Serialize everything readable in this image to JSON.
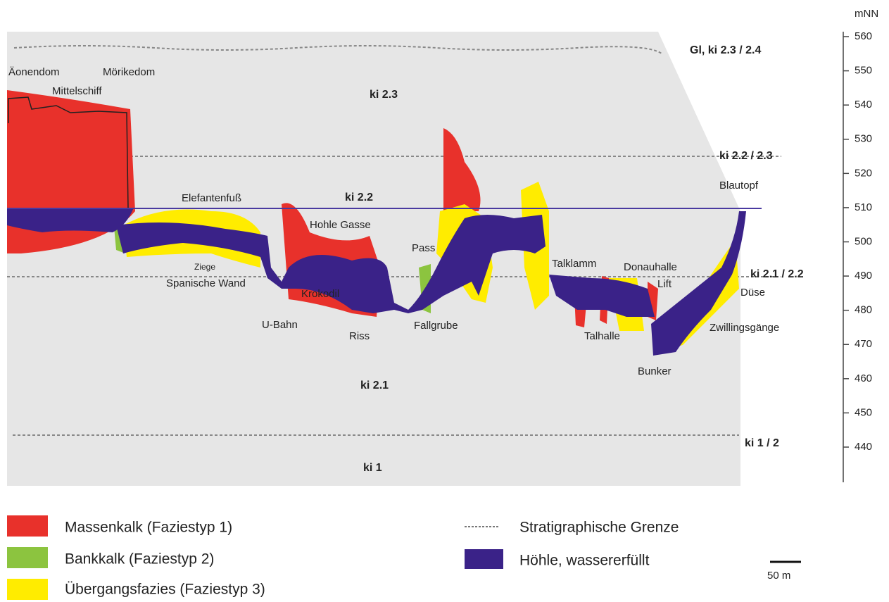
{
  "axis": {
    "unit": "mNN",
    "ticks": [
      560,
      550,
      540,
      530,
      520,
      510,
      500,
      490,
      480,
      470,
      460,
      450,
      440
    ]
  },
  "strata": [
    "Gl,  ki 2.3 / 2.4",
    "ki 2.3",
    "ki  2.2 / 2.3",
    "ki 2.2",
    "ki  2.1 / 2.2",
    "ki 2.1",
    "ki  1 / 2",
    "ki 1"
  ],
  "locations": [
    "Äonendom",
    "Mittelschiff",
    "Mörikedom",
    "Elefantenfuß",
    "Ziege",
    "Spanische Wand",
    "U-Bahn",
    "Hohle Gasse",
    "Krokodil",
    "Riss",
    "Pass",
    "Fallgrube",
    "Talklamm",
    "Talhalle",
    "Donauhalle",
    "Lift",
    "Bunker",
    "Zwillingsgänge",
    "Düse",
    "Blautopf"
  ],
  "legend": [
    "Massenkalk (Faziestyp 1)",
    "Bankkalk (Faziestyp 2)",
    "Übergangsfazies (Faziestyp 3)",
    "Stratigraphische Grenze",
    "Höhle, wassererfüllt"
  ],
  "scale_bar": "50 m"
}
